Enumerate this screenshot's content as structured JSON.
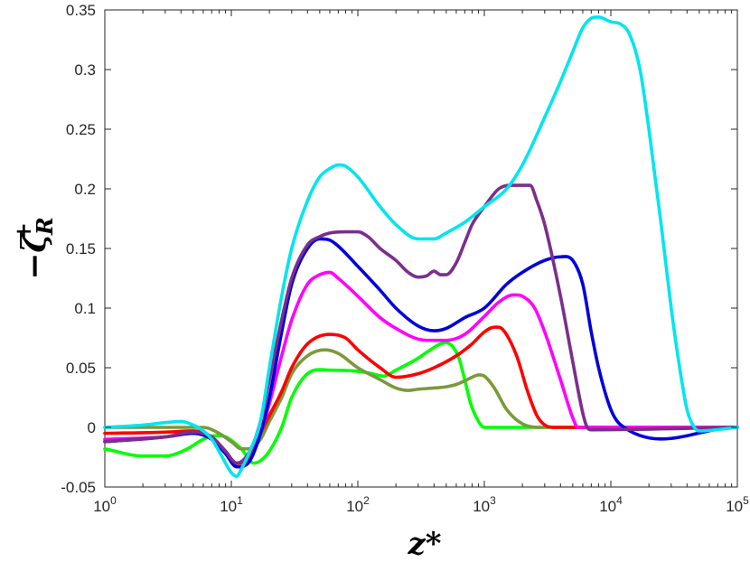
{
  "chart_data": {
    "type": "line",
    "title": "",
    "xlabel": "z*",
    "ylabel": "−ζ",
    "ylabel_superscript": "+",
    "ylabel_subscript": "R",
    "xscale": "log",
    "xlim": [
      1,
      100000
    ],
    "ylim": [
      -0.05,
      0.35
    ],
    "grid": false,
    "legend": "none",
    "y_ticks": [
      "-0.05",
      "0",
      "0.05",
      "0.1",
      "0.15",
      "0.2",
      "0.25",
      "0.3",
      "0.35"
    ],
    "x_ticks": [
      {
        "base": "10",
        "exp": "0"
      },
      {
        "base": "10",
        "exp": "1"
      },
      {
        "base": "10",
        "exp": "2"
      },
      {
        "base": "10",
        "exp": "3"
      },
      {
        "base": "10",
        "exp": "4"
      },
      {
        "base": "10",
        "exp": "5"
      }
    ],
    "series": [
      {
        "color": "#00ff00",
        "x": [
          1,
          2,
          3,
          4.5,
          6,
          7.5,
          9,
          12,
          15,
          17,
          20,
          25,
          30,
          40,
          60,
          100,
          130,
          160,
          200,
          300,
          350,
          400,
          450,
          500,
          560,
          630,
          700,
          780,
          900,
          1000,
          1500,
          3000,
          10000,
          100000
        ],
        "y": [
          -0.018,
          -0.024,
          -0.024,
          -0.018,
          -0.01,
          -0.007,
          -0.008,
          -0.018,
          -0.03,
          -0.028,
          -0.02,
          0.0,
          0.025,
          0.045,
          0.048,
          0.047,
          0.045,
          0.043,
          0.048,
          0.058,
          0.063,
          0.067,
          0.07,
          0.071,
          0.068,
          0.058,
          0.04,
          0.02,
          0.005,
          0.0,
          0.0,
          0.0,
          0.0,
          0.0
        ]
      },
      {
        "color": "#7a9a3a",
        "x": [
          1,
          3,
          6,
          8,
          10,
          12,
          14,
          17,
          20,
          25,
          30,
          40,
          55,
          70,
          100,
          150,
          200,
          250,
          300,
          400,
          500,
          600,
          700,
          800,
          900,
          1000,
          1200,
          1500,
          2000,
          3000,
          5000,
          100000
        ],
        "y": [
          0.0,
          0.0,
          0.0,
          -0.005,
          -0.012,
          -0.018,
          -0.018,
          -0.01,
          0.005,
          0.025,
          0.045,
          0.06,
          0.065,
          0.062,
          0.05,
          0.04,
          0.033,
          0.031,
          0.032,
          0.033,
          0.034,
          0.036,
          0.039,
          0.042,
          0.044,
          0.043,
          0.033,
          0.015,
          0.003,
          0.0,
          0.0,
          0.0
        ]
      },
      {
        "color": "#ff0000",
        "x": [
          1,
          3,
          5,
          7,
          9,
          11,
          14,
          17,
          20,
          25,
          30,
          40,
          60,
          80,
          100,
          150,
          200,
          300,
          400,
          600,
          800,
          1000,
          1200,
          1400,
          1800,
          2200,
          2600,
          3000,
          3500,
          100000
        ],
        "y": [
          -0.005,
          -0.004,
          -0.003,
          -0.008,
          -0.02,
          -0.03,
          -0.025,
          -0.005,
          0.01,
          0.03,
          0.05,
          0.07,
          0.078,
          0.075,
          0.065,
          0.05,
          0.042,
          0.045,
          0.05,
          0.06,
          0.07,
          0.08,
          0.084,
          0.082,
          0.06,
          0.03,
          0.01,
          0.002,
          0.0,
          0.0
        ]
      },
      {
        "color": "#ff00ff",
        "x": [
          1,
          3,
          5,
          7,
          9,
          11,
          14,
          17,
          20,
          25,
          30,
          40,
          50,
          60,
          70,
          100,
          150,
          200,
          300,
          400,
          500,
          700,
          1000,
          1300,
          1700,
          2000,
          2500,
          3000,
          4000,
          5000,
          5500,
          100000
        ],
        "y": [
          -0.01,
          -0.008,
          -0.005,
          -0.01,
          -0.022,
          -0.033,
          -0.028,
          -0.005,
          0.02,
          0.06,
          0.09,
          0.12,
          0.128,
          0.13,
          0.125,
          0.11,
          0.092,
          0.083,
          0.074,
          0.073,
          0.073,
          0.078,
          0.093,
          0.105,
          0.111,
          0.11,
          0.1,
          0.08,
          0.04,
          0.008,
          0.0,
          0.0
        ]
      },
      {
        "color": "#0000dd",
        "x": [
          1,
          3,
          5,
          7,
          9,
          11,
          14,
          17,
          20,
          25,
          30,
          40,
          50,
          60,
          70,
          100,
          150,
          200,
          300,
          400,
          500,
          700,
          1000,
          1500,
          2000,
          3000,
          4000,
          5000,
          6000,
          7000,
          8000,
          10000,
          12000,
          100000
        ],
        "y": [
          -0.012,
          -0.008,
          -0.005,
          -0.01,
          -0.022,
          -0.033,
          -0.028,
          -0.005,
          0.025,
          0.08,
          0.12,
          0.15,
          0.158,
          0.157,
          0.152,
          0.135,
          0.115,
          0.1,
          0.085,
          0.081,
          0.083,
          0.092,
          0.1,
          0.12,
          0.13,
          0.14,
          0.143,
          0.14,
          0.12,
          0.08,
          0.05,
          0.015,
          0.002,
          0.0
        ]
      },
      {
        "color": "#7b2e8e",
        "x": [
          1,
          3,
          5,
          7,
          9,
          11,
          14,
          17,
          20,
          25,
          30,
          40,
          50,
          60,
          80,
          100,
          120,
          150,
          200,
          250,
          300,
          350,
          400,
          450,
          500,
          600,
          700,
          800,
          1000,
          1300,
          1600,
          2000,
          2300,
          2600,
          3000,
          4000,
          5000,
          6000,
          6500,
          7000,
          100000
        ],
        "y": [
          -0.012,
          -0.008,
          -0.004,
          -0.008,
          -0.02,
          -0.03,
          -0.02,
          0.005,
          0.04,
          0.09,
          0.125,
          0.153,
          0.16,
          0.163,
          0.164,
          0.164,
          0.16,
          0.15,
          0.14,
          0.13,
          0.126,
          0.127,
          0.131,
          0.128,
          0.128,
          0.138,
          0.155,
          0.17,
          0.185,
          0.2,
          0.203,
          0.203,
          0.203,
          0.19,
          0.17,
          0.11,
          0.055,
          0.012,
          0.0,
          -0.002,
          0.0
        ]
      },
      {
        "color": "#00e5ee",
        "x": [
          1,
          2,
          3,
          4,
          5,
          6,
          7,
          8,
          9,
          10,
          11,
          12,
          14,
          17,
          20,
          25,
          30,
          40,
          50,
          60,
          70,
          80,
          100,
          150,
          200,
          300,
          400,
          500,
          700,
          1000,
          1500,
          2000,
          3000,
          4000,
          5000,
          6000,
          7000,
          8000,
          10000,
          12000,
          14000,
          17000,
          20000,
          25000,
          30000,
          35000,
          40000,
          45000,
          50000,
          100000
        ],
        "y": [
          0.0,
          0.002,
          0.004,
          0.005,
          0.002,
          -0.003,
          -0.01,
          -0.02,
          -0.03,
          -0.038,
          -0.041,
          -0.035,
          -0.02,
          0.005,
          0.05,
          0.11,
          0.15,
          0.19,
          0.21,
          0.217,
          0.22,
          0.219,
          0.21,
          0.185,
          0.17,
          0.158,
          0.158,
          0.163,
          0.172,
          0.185,
          0.2,
          0.22,
          0.26,
          0.29,
          0.315,
          0.335,
          0.343,
          0.344,
          0.34,
          0.338,
          0.33,
          0.3,
          0.25,
          0.17,
          0.1,
          0.05,
          0.015,
          0.001,
          -0.003,
          0.0
        ]
      }
    ]
  }
}
